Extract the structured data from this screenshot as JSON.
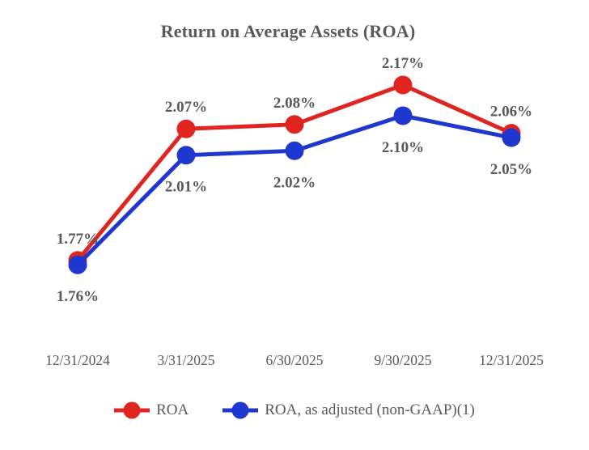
{
  "chart_data": {
    "type": "line",
    "title": "Return on Average Assets (ROA)",
    "categories": [
      "12/31/2024",
      "3/31/2025",
      "6/30/2025",
      "9/30/2025",
      "12/31/2025"
    ],
    "series": [
      {
        "name": "ROA",
        "color": "#e02420",
        "values": [
          1.77,
          2.07,
          2.08,
          2.17,
          2.06
        ],
        "point_labels": [
          "1.77%",
          "2.07%",
          "2.08%",
          "2.17%",
          "2.06%"
        ],
        "label_position": "above"
      },
      {
        "name": "ROA, as adjusted (non-GAAP)(1)",
        "color": "#1e38cf",
        "values": [
          1.76,
          2.01,
          2.02,
          2.1,
          2.05
        ],
        "point_labels": [
          "1.76%",
          "2.01%",
          "2.02%",
          "2.10%",
          "2.05%"
        ],
        "label_position": "below"
      }
    ],
    "ylim_implied": [
      1.7,
      2.25
    ],
    "grid": false,
    "axes_visible": false,
    "legend_position": "bottom",
    "text_color": "#595959",
    "background": "#ffffff"
  }
}
